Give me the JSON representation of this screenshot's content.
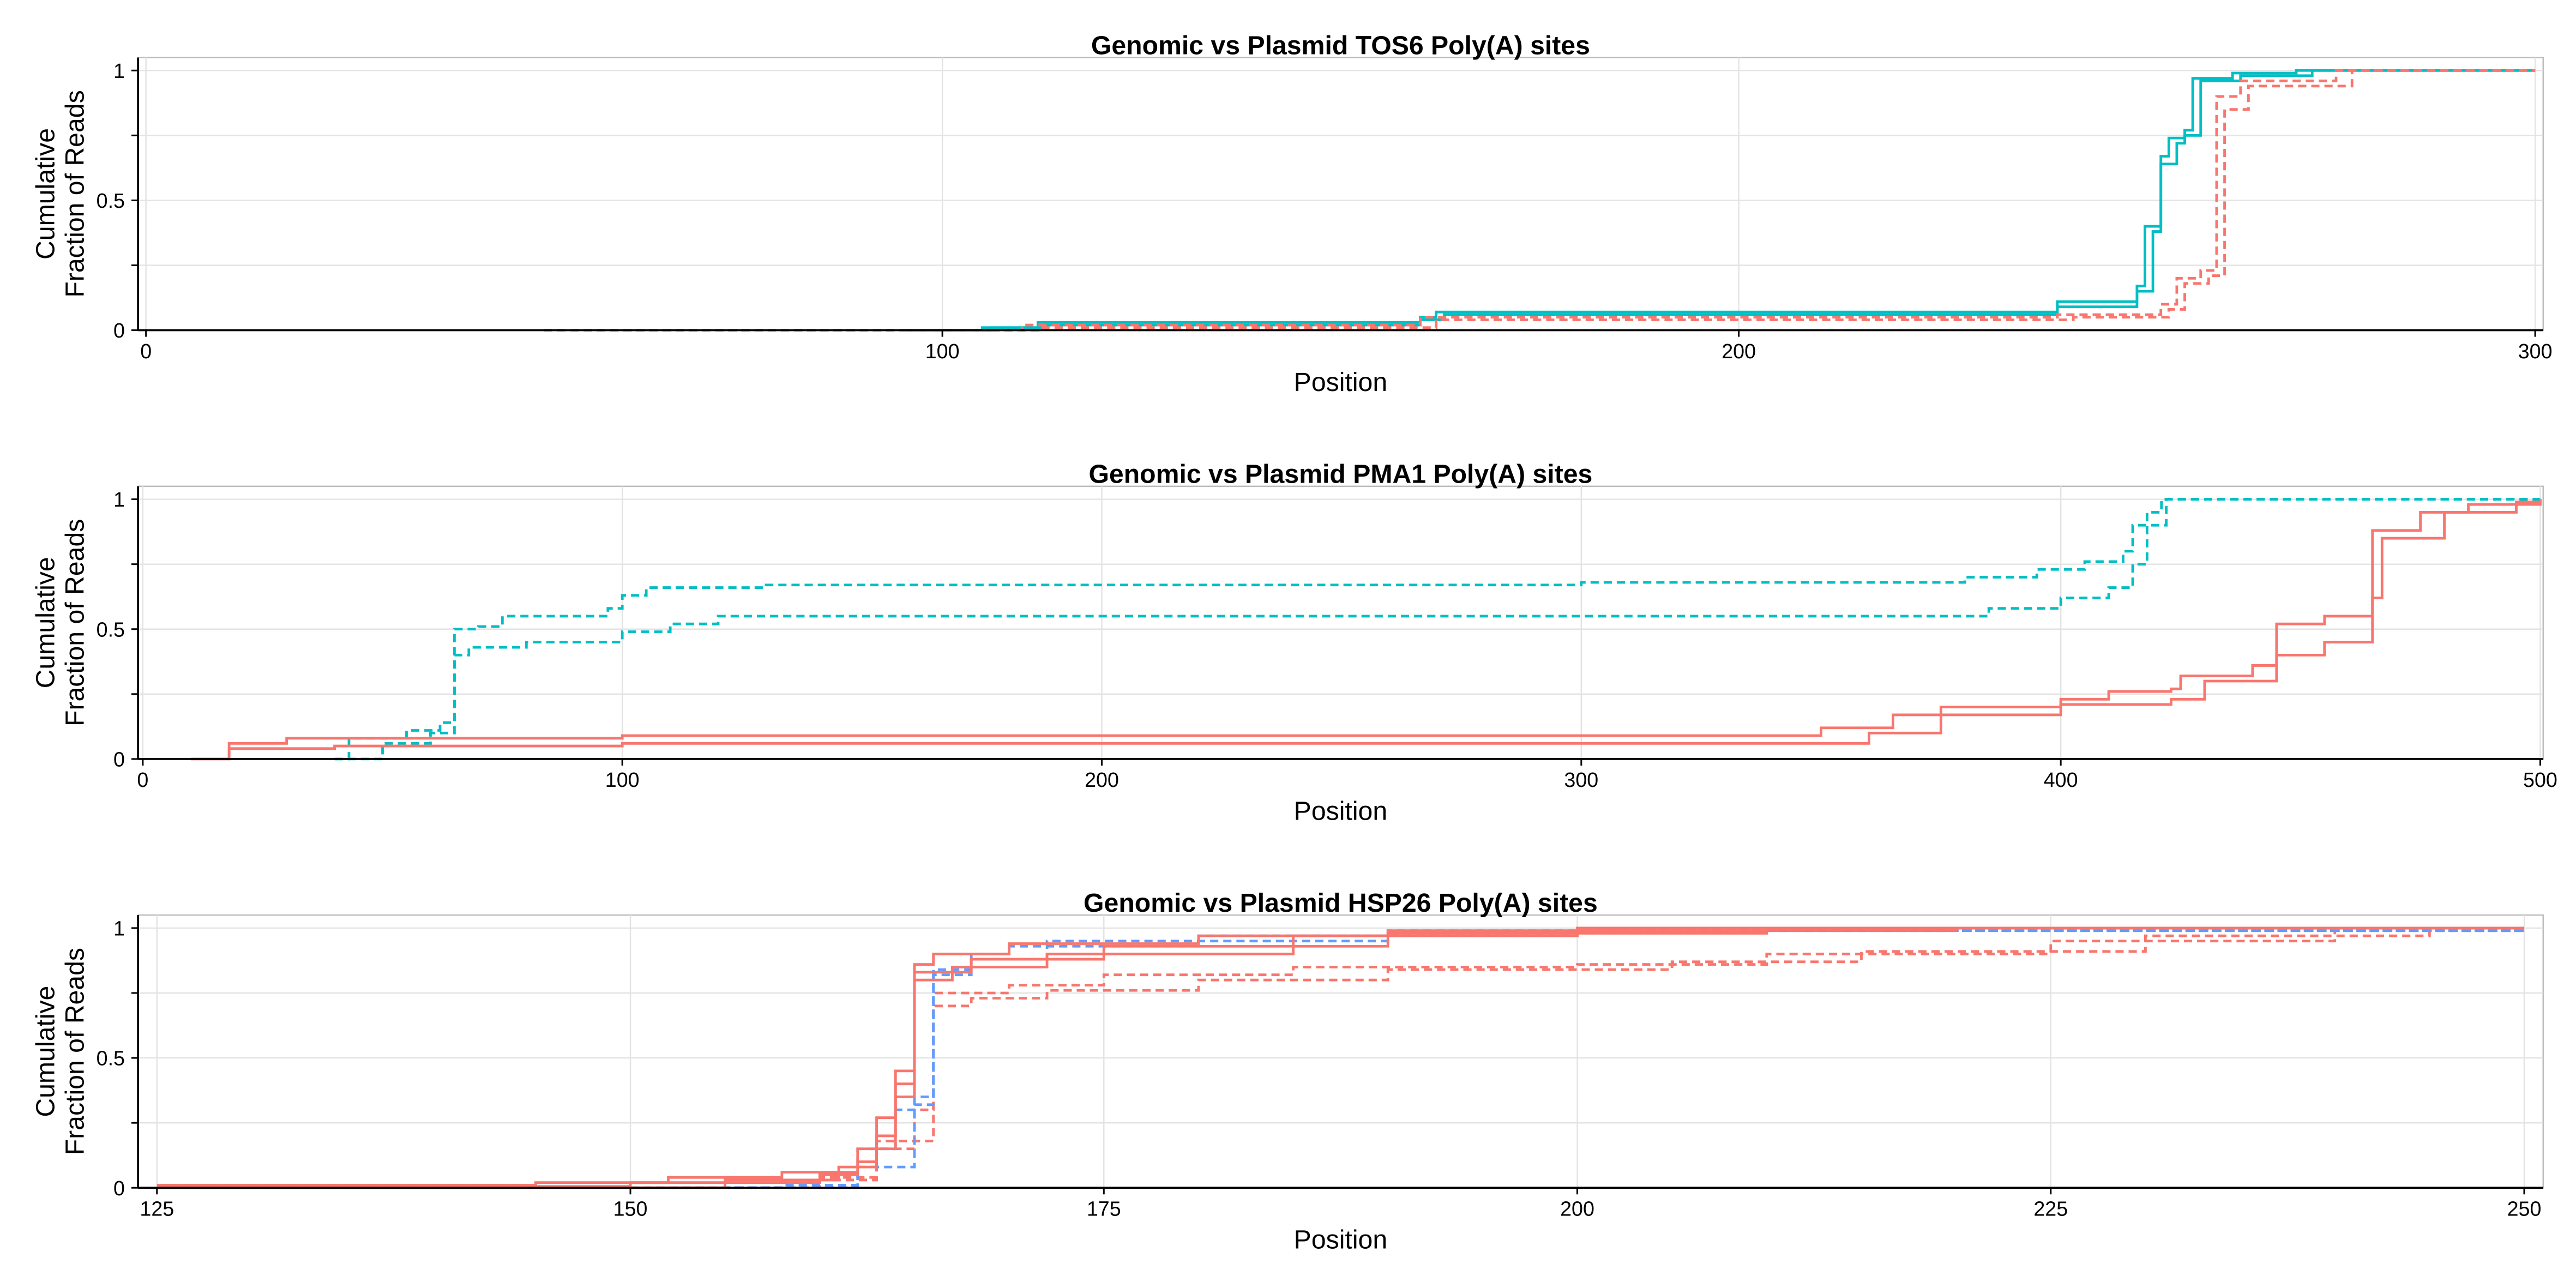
{
  "chart_data": [
    {
      "type": "line",
      "title": "Genomic vs Plasmid TOS6 Poly(A) sites",
      "xlabel": "Position",
      "ylabel": [
        "Cumulative",
        "Fraction of Reads"
      ],
      "xlim": [
        -1,
        301
      ],
      "ylim": [
        0,
        1.05
      ],
      "xticks": [
        0,
        100,
        200,
        300
      ],
      "yticks": [
        0,
        0.5,
        1
      ],
      "yminorticks": [
        0.25,
        0.75
      ],
      "grid": true,
      "step": true,
      "series": [
        {
          "color": "#00BFC4",
          "dash": false,
          "x": [
            95,
            105,
            112,
            160,
            162,
            240,
            250,
            251,
            253,
            254,
            256,
            257,
            262,
            270,
            300
          ],
          "values": [
            0,
            0.01,
            0.03,
            0.05,
            0.07,
            0.11,
            0.17,
            0.4,
            0.67,
            0.74,
            0.77,
            0.97,
            0.99,
            1,
            1
          ]
        },
        {
          "color": "#00BFC4",
          "dash": false,
          "x": [
            95,
            106,
            113,
            160,
            163,
            240,
            250,
            252,
            253,
            255,
            256,
            258,
            263,
            272,
            300
          ],
          "values": [
            0,
            0.01,
            0.02,
            0.04,
            0.06,
            0.09,
            0.15,
            0.38,
            0.64,
            0.72,
            0.75,
            0.96,
            0.98,
            1,
            1
          ]
        },
        {
          "color": "#F8766D",
          "dash": true,
          "x": [
            50,
            110,
            160,
            240,
            253,
            255,
            258,
            260,
            263,
            275,
            300
          ],
          "values": [
            0,
            0.02,
            0.05,
            0.06,
            0.1,
            0.2,
            0.23,
            0.9,
            0.96,
            1,
            1
          ]
        },
        {
          "color": "#F8766D",
          "dash": true,
          "x": [
            55,
            112,
            162,
            242,
            254,
            256,
            259,
            261,
            264,
            277,
            300
          ],
          "values": [
            0,
            0.01,
            0.04,
            0.05,
            0.08,
            0.18,
            0.21,
            0.85,
            0.94,
            1,
            1
          ]
        }
      ]
    },
    {
      "type": "line",
      "title": "Genomic vs Plasmid PMA1 Poly(A) sites",
      "xlabel": "Position",
      "ylabel": [
        "Cumulative",
        "Fraction of Reads"
      ],
      "xlim": [
        -1,
        500.6
      ],
      "ylim": [
        0,
        1.05
      ],
      "xticks": [
        0,
        100,
        200,
        300,
        400,
        500
      ],
      "yticks": [
        0,
        0.5,
        1
      ],
      "yminorticks": [
        0.25,
        0.75
      ],
      "grid": true,
      "step": true,
      "series": [
        {
          "color": "#00BFC4",
          "dash": true,
          "x": [
            40,
            43,
            55,
            62,
            65,
            70,
            75,
            97,
            100,
            105,
            130,
            300,
            370,
            380,
            395,
            405,
            413,
            415,
            418,
            421,
            500
          ],
          "values": [
            0,
            0.08,
            0.11,
            0.14,
            0.5,
            0.51,
            0.55,
            0.58,
            0.63,
            0.66,
            0.67,
            0.68,
            0.68,
            0.7,
            0.73,
            0.76,
            0.8,
            0.9,
            0.95,
            1,
            1
          ]
        },
        {
          "color": "#00BFC4",
          "dash": true,
          "x": [
            40,
            50,
            60,
            65,
            68,
            80,
            100,
            110,
            120,
            370,
            385,
            400,
            410,
            415,
            418,
            422,
            500
          ],
          "values": [
            0,
            0.06,
            0.1,
            0.4,
            0.43,
            0.45,
            0.49,
            0.52,
            0.55,
            0.55,
            0.58,
            0.62,
            0.66,
            0.75,
            0.9,
            1,
            1
          ]
        },
        {
          "color": "#F8766D",
          "dash": false,
          "x": [
            10,
            18,
            30,
            100,
            320,
            350,
            365,
            375,
            400,
            410,
            423,
            425,
            440,
            445,
            455,
            465,
            475,
            485,
            500
          ],
          "values": [
            0,
            0.06,
            0.08,
            0.09,
            0.09,
            0.12,
            0.17,
            0.2,
            0.23,
            0.26,
            0.27,
            0.32,
            0.36,
            0.52,
            0.55,
            0.88,
            0.95,
            0.98,
            1
          ]
        },
        {
          "color": "#F8766D",
          "dash": false,
          "x": [
            10,
            18,
            40,
            100,
            330,
            360,
            375,
            400,
            423,
            430,
            445,
            455,
            465,
            467,
            480,
            495,
            500
          ],
          "values": [
            0,
            0.04,
            0.05,
            0.06,
            0.06,
            0.1,
            0.17,
            0.21,
            0.23,
            0.3,
            0.4,
            0.45,
            0.62,
            0.85,
            0.95,
            0.99,
            1
          ]
        }
      ]
    },
    {
      "type": "line",
      "title": "Genomic vs Plasmid HSP26 Poly(A) sites",
      "xlabel": "Position",
      "ylabel": [
        "Cumulative",
        "Fraction of Reads"
      ],
      "xlim": [
        124,
        251
      ],
      "ylim": [
        0,
        1.05
      ],
      "xticks": [
        125,
        150,
        175,
        200,
        225,
        250
      ],
      "yticks": [
        0,
        0.5,
        1
      ],
      "yminorticks": [
        0.25,
        0.75
      ],
      "grid": true,
      "step": true,
      "series": [
        {
          "color": "#F8766D",
          "dash": true,
          "x": [
            125,
            158,
            163,
            165,
            166,
            168,
            172,
            180,
            190,
            205,
            215,
            230,
            245,
            250
          ],
          "values": [
            0,
            0.03,
            0.15,
            0.3,
            0.7,
            0.73,
            0.76,
            0.8,
            0.84,
            0.87,
            0.91,
            0.97,
            1,
            1
          ]
        },
        {
          "color": "#F8766D",
          "dash": true,
          "x": [
            125,
            160,
            163,
            166,
            170,
            175,
            185,
            200,
            210,
            225,
            240,
            250
          ],
          "values": [
            0,
            0.04,
            0.18,
            0.75,
            0.78,
            0.82,
            0.85,
            0.86,
            0.9,
            0.95,
            0.99,
            1
          ]
        },
        {
          "color": "#619CFF",
          "dash": true,
          "x": [
            150,
            158,
            162,
            164,
            165,
            166,
            168,
            170,
            180,
            200,
            250
          ],
          "values": [
            0,
            0.01,
            0.15,
            0.3,
            0.35,
            0.84,
            0.9,
            0.93,
            0.97,
            0.99,
            1
          ]
        },
        {
          "color": "#619CFF",
          "dash": true,
          "x": [
            152,
            162,
            165,
            166,
            168,
            172,
            190,
            250
          ],
          "values": [
            0,
            0.08,
            0.32,
            0.82,
            0.88,
            0.95,
            0.99,
            1
          ]
        },
        {
          "color": "#F8766D",
          "dash": false,
          "x": [
            125,
            145,
            152,
            158,
            162,
            163,
            164,
            165,
            166,
            170,
            180,
            190,
            200,
            250
          ],
          "values": [
            0.01,
            0.02,
            0.04,
            0.06,
            0.1,
            0.27,
            0.4,
            0.86,
            0.9,
            0.94,
            0.97,
            0.99,
            1,
            1
          ]
        },
        {
          "color": "#F8766D",
          "dash": false,
          "x": [
            125,
            150,
            160,
            162,
            164,
            165,
            167,
            172,
            185,
            200,
            220,
            250
          ],
          "values": [
            0.005,
            0.02,
            0.05,
            0.15,
            0.35,
            0.8,
            0.85,
            0.9,
            0.97,
            0.99,
            1,
            1
          ]
        },
        {
          "color": "#F8766D",
          "dash": false,
          "x": [
            125,
            155,
            161,
            163,
            164,
            165,
            168,
            175,
            190,
            210,
            250
          ],
          "values": [
            0,
            0.03,
            0.08,
            0.2,
            0.45,
            0.83,
            0.88,
            0.93,
            0.98,
            1,
            1
          ]
        }
      ]
    }
  ]
}
